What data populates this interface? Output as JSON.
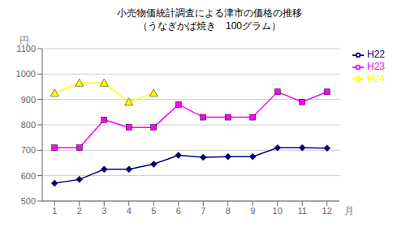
{
  "chart_data": {
    "type": "line",
    "title": "小売物価統計調査による津市の価格の推移",
    "subtitle": "（うなぎかば焼き　100グラム）",
    "xlabel": "月",
    "ylabel": "円",
    "x": [
      1,
      2,
      3,
      4,
      5,
      6,
      7,
      8,
      9,
      10,
      11,
      12
    ],
    "series": [
      {
        "name": "H22",
        "color": "#000080",
        "marker": "diamond",
        "values": [
          570,
          585,
          625,
          625,
          645,
          680,
          672,
          675,
          675,
          710,
          710,
          708
        ]
      },
      {
        "name": "H23",
        "color": "#FF00FF",
        "marker": "square",
        "values": [
          710,
          710,
          820,
          790,
          790,
          880,
          830,
          830,
          830,
          930,
          890,
          930
        ]
      },
      {
        "name": "H24",
        "color": "#FFFF00",
        "marker": "triangle",
        "values": [
          925,
          965,
          965,
          890,
          925,
          null,
          null,
          null,
          null,
          null,
          null,
          null
        ]
      }
    ],
    "xlim": [
      0.5,
      12.5
    ],
    "xticks": [
      1,
      2,
      3,
      4,
      5,
      6,
      7,
      8,
      9,
      10,
      11,
      12
    ],
    "ylim": [
      500,
      1100
    ],
    "yticks": [
      500,
      600,
      700,
      800,
      900,
      1000,
      1100
    ],
    "grid": "y",
    "legend": "right"
  }
}
